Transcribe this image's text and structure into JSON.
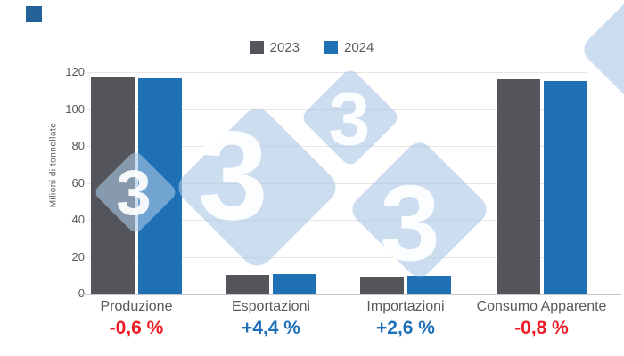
{
  "logo": {
    "color": "#256299"
  },
  "legend": {
    "items": [
      {
        "label": "2023",
        "color": "#54555a"
      },
      {
        "label": "2024",
        "color": "#2070b5"
      }
    ]
  },
  "chart_data": {
    "type": "bar",
    "title": "",
    "ylabel": "Milioni di tonnellate",
    "xlabel": "",
    "categories": [
      "Produzione",
      "Esportazioni",
      "Importazioni",
      "Consumo Apparente"
    ],
    "series": [
      {
        "name": "2023",
        "color": "#54555a",
        "values": [
          117.2,
          10.2,
          9.3,
          116.3
        ]
      },
      {
        "name": "2024",
        "color": "#2070b5",
        "values": [
          116.5,
          10.65,
          9.54,
          115.4
        ]
      }
    ],
    "variations": [
      {
        "category": "Produzione",
        "text": "-0,6 %",
        "color": "#ed1c24"
      },
      {
        "category": "Esportazioni",
        "text": "+4,4 %",
        "color": "#1d70b8"
      },
      {
        "category": "Importazioni",
        "text": "+2,6 %",
        "color": "#1d70b8"
      },
      {
        "category": "Consumo Apparente",
        "text": "-0,8 %",
        "color": "#ed1c24"
      }
    ],
    "ylim": [
      0,
      120
    ],
    "yticks": [
      0,
      20,
      40,
      60,
      80,
      100,
      120
    ],
    "grid": true,
    "legend_position": "top-center"
  },
  "watermark": {
    "glyph": "3",
    "color": "rgba(168,198,228,0.6)",
    "glyph_color": "rgba(255,255,255,0.92)"
  }
}
